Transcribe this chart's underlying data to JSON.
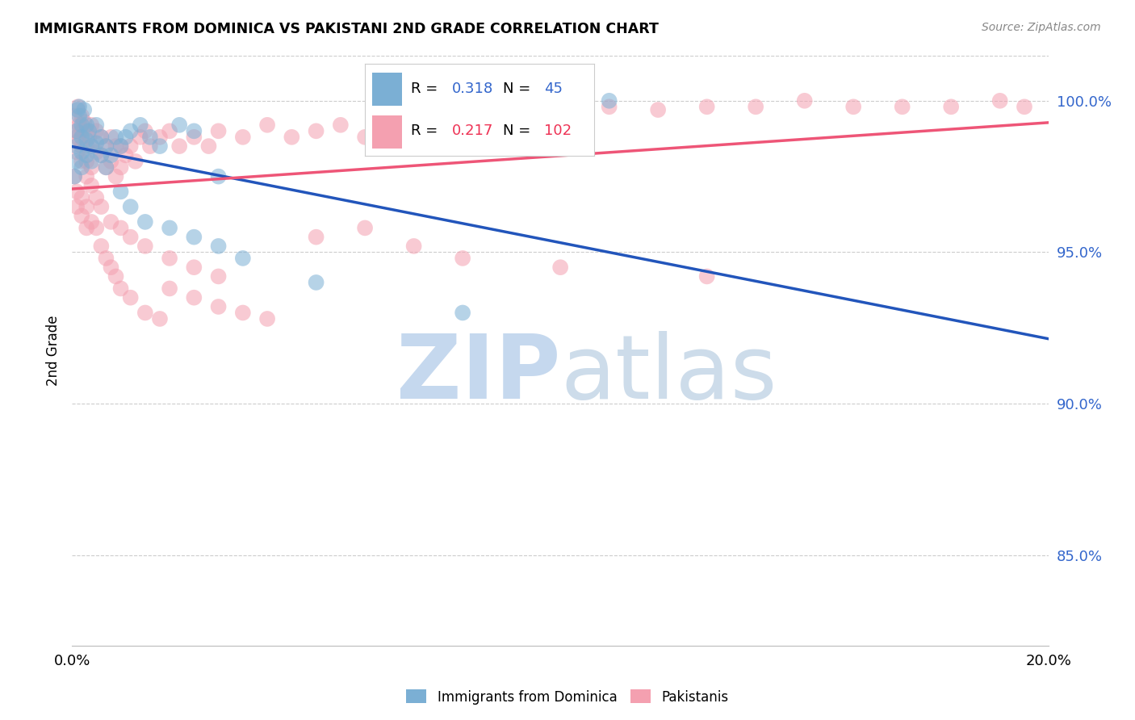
{
  "title": "IMMIGRANTS FROM DOMINICA VS PAKISTANI 2ND GRADE CORRELATION CHART",
  "source": "Source: ZipAtlas.com",
  "ylabel": "2nd Grade",
  "xlim": [
    0.0,
    0.2
  ],
  "ylim": [
    0.82,
    1.015
  ],
  "yticks": [
    0.85,
    0.9,
    0.95,
    1.0
  ],
  "blue_R": 0.318,
  "blue_N": 45,
  "pink_R": 0.217,
  "pink_N": 102,
  "blue_color": "#7BAFD4",
  "pink_color": "#F4A0B0",
  "blue_line_color": "#2255BB",
  "pink_line_color": "#EE5577",
  "blue_label": "Immigrants from Dominica",
  "pink_label": "Pakistanis",
  "blue_scatter_x": [
    0.0005,
    0.0008,
    0.001,
    0.001,
    0.0012,
    0.0015,
    0.0015,
    0.002,
    0.002,
    0.002,
    0.002,
    0.0025,
    0.003,
    0.003,
    0.003,
    0.0035,
    0.004,
    0.004,
    0.005,
    0.005,
    0.006,
    0.006,
    0.007,
    0.007,
    0.008,
    0.009,
    0.01,
    0.011,
    0.012,
    0.014,
    0.016,
    0.018,
    0.022,
    0.025,
    0.03,
    0.01,
    0.012,
    0.015,
    0.02,
    0.025,
    0.03,
    0.035,
    0.05,
    0.08,
    0.11
  ],
  "blue_scatter_y": [
    0.975,
    0.98,
    0.985,
    0.99,
    0.997,
    0.995,
    0.998,
    0.992,
    0.988,
    0.983,
    0.978,
    0.997,
    0.992,
    0.987,
    0.982,
    0.99,
    0.985,
    0.98,
    0.992,
    0.986,
    0.988,
    0.982,
    0.985,
    0.978,
    0.982,
    0.988,
    0.985,
    0.988,
    0.99,
    0.992,
    0.988,
    0.985,
    0.992,
    0.99,
    0.975,
    0.97,
    0.965,
    0.96,
    0.958,
    0.955,
    0.952,
    0.948,
    0.94,
    0.93,
    1.0
  ],
  "pink_scatter_x": [
    0.0005,
    0.0008,
    0.001,
    0.001,
    0.0012,
    0.0015,
    0.0015,
    0.002,
    0.002,
    0.002,
    0.002,
    0.0025,
    0.003,
    0.003,
    0.003,
    0.0035,
    0.004,
    0.004,
    0.004,
    0.005,
    0.005,
    0.006,
    0.006,
    0.007,
    0.007,
    0.008,
    0.008,
    0.009,
    0.009,
    0.01,
    0.01,
    0.011,
    0.012,
    0.013,
    0.014,
    0.015,
    0.016,
    0.018,
    0.02,
    0.022,
    0.025,
    0.028,
    0.03,
    0.035,
    0.04,
    0.045,
    0.05,
    0.055,
    0.06,
    0.07,
    0.08,
    0.09,
    0.1,
    0.11,
    0.12,
    0.13,
    0.14,
    0.15,
    0.16,
    0.17,
    0.18,
    0.19,
    0.195,
    0.0005,
    0.001,
    0.001,
    0.002,
    0.002,
    0.003,
    0.003,
    0.004,
    0.005,
    0.006,
    0.007,
    0.008,
    0.009,
    0.01,
    0.012,
    0.015,
    0.018,
    0.02,
    0.025,
    0.03,
    0.035,
    0.04,
    0.003,
    0.004,
    0.005,
    0.006,
    0.008,
    0.01,
    0.012,
    0.015,
    0.02,
    0.025,
    0.03,
    0.05,
    0.06,
    0.07,
    0.08,
    0.1,
    0.13
  ],
  "pink_scatter_y": [
    0.995,
    0.99,
    0.988,
    0.983,
    0.998,
    0.992,
    0.987,
    0.995,
    0.99,
    0.985,
    0.98,
    0.993,
    0.99,
    0.985,
    0.98,
    0.988,
    0.992,
    0.985,
    0.978,
    0.99,
    0.983,
    0.988,
    0.982,
    0.985,
    0.978,
    0.988,
    0.98,
    0.985,
    0.975,
    0.985,
    0.978,
    0.982,
    0.985,
    0.98,
    0.988,
    0.99,
    0.985,
    0.988,
    0.99,
    0.985,
    0.988,
    0.985,
    0.99,
    0.988,
    0.992,
    0.988,
    0.99,
    0.992,
    0.988,
    0.992,
    0.995,
    0.992,
    0.995,
    0.998,
    0.997,
    0.998,
    0.998,
    1.0,
    0.998,
    0.998,
    0.998,
    1.0,
    0.998,
    0.975,
    0.97,
    0.965,
    0.968,
    0.962,
    0.958,
    0.965,
    0.96,
    0.958,
    0.952,
    0.948,
    0.945,
    0.942,
    0.938,
    0.935,
    0.93,
    0.928,
    0.938,
    0.935,
    0.932,
    0.93,
    0.928,
    0.975,
    0.972,
    0.968,
    0.965,
    0.96,
    0.958,
    0.955,
    0.952,
    0.948,
    0.945,
    0.942,
    0.955,
    0.958,
    0.952,
    0.948,
    0.945,
    0.942
  ]
}
